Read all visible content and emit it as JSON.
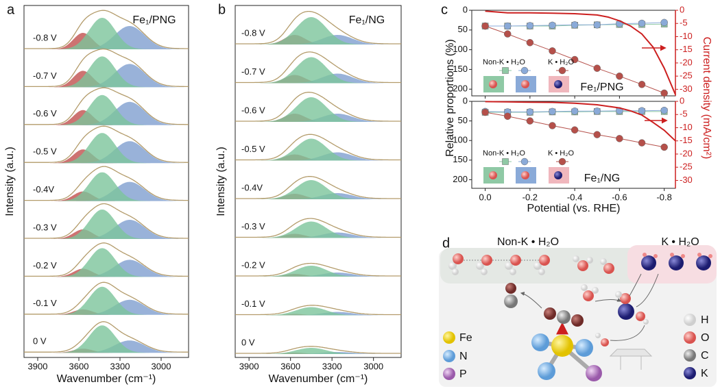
{
  "chart_data": [
    {
      "type": "spectra",
      "panel": "a",
      "annotation": "Fe₁/PNG",
      "xlabel": "Wavenumber (cm⁻¹)",
      "ylabel": "Intensity (a.u.)",
      "xlim": [
        4000,
        2800
      ],
      "xticks": [
        3900,
        3600,
        3300,
        3000
      ],
      "categories": [
        "-0.8 V",
        "-0.7 V",
        "-0.6 V",
        "-0.5 V",
        "-0.4V",
        "-0.3 V",
        "-0.2 V",
        "-0.1 V",
        "0 V"
      ],
      "series": [
        {
          "color": "#c0504d",
          "center": 3570,
          "width": 70,
          "values": [
            24,
            24,
            22,
            20,
            14,
            14,
            12,
            8,
            6
          ]
        },
        {
          "color": "#7f9fd0",
          "center": 3230,
          "width": 110,
          "values": [
            34,
            34,
            34,
            32,
            28,
            28,
            25,
            22,
            18
          ]
        },
        {
          "color": "#7cc49b",
          "center": 3430,
          "width": 95,
          "values": [
            46,
            45,
            44,
            44,
            42,
            43,
            42,
            41,
            40
          ]
        }
      ]
    },
    {
      "type": "spectra",
      "panel": "b",
      "annotation": "Fe₁/NG",
      "xlabel": "Wavenumber (cm⁻¹)",
      "ylabel": "Intensity (a.u.)",
      "xlim": [
        4000,
        2800
      ],
      "xticks": [
        3900,
        3600,
        3300,
        3000
      ],
      "categories": [
        "-0.8 V",
        "-0.7 V",
        "-0.6 V",
        "-0.5 V",
        "-0.4V",
        "-0.3 V",
        "-0.2 V",
        "-0.1 V",
        "0 V"
      ],
      "series": [
        {
          "color": "#c0504d",
          "center": 3570,
          "width": 75,
          "values": [
            14,
            12,
            12,
            9,
            8,
            6,
            4,
            2,
            2
          ]
        },
        {
          "color": "#7f9fd0",
          "center": 3260,
          "width": 110,
          "values": [
            14,
            14,
            12,
            12,
            9,
            8,
            6,
            5,
            3
          ]
        },
        {
          "color": "#7cc49b",
          "center": 3450,
          "width": 110,
          "values": [
            40,
            38,
            36,
            32,
            28,
            24,
            16,
            12,
            9
          ]
        }
      ]
    },
    {
      "type": "dual",
      "panel": "c",
      "annotation": "Fe₁/PNG",
      "x": [
        0,
        -0.1,
        -0.2,
        -0.3,
        -0.4,
        -0.5,
        -0.6,
        -0.7,
        -0.8
      ],
      "xlim": [
        0.06,
        -0.85
      ],
      "xticks": [
        {
          "value": 0,
          "label": "0.0"
        },
        -0.2,
        -0.4,
        -0.6,
        -0.8
      ],
      "ylim": [
        0,
        217
      ],
      "yticks": [
        0,
        50,
        100,
        150,
        200
      ],
      "y2lim": [
        0,
        -32.5
      ],
      "y2ticks": [
        0,
        -5,
        -10,
        -15,
        -20,
        -25,
        -30
      ],
      "series": [
        {
          "name": "Non-K • H₂O",
          "color": "#8fc9a5",
          "marker": "square",
          "values": [
            40,
            40,
            40,
            40,
            38,
            37,
            36,
            36,
            35
          ]
        },
        {
          "color": "#8aaad8",
          "marker": "circle",
          "values": [
            40,
            40,
            39,
            38,
            37,
            37,
            34,
            33,
            31
          ]
        },
        {
          "name": "K • H₂O",
          "color": "#b5504a",
          "marker": "circle",
          "values": [
            40,
            60,
            82,
            103,
            125,
            147,
            167,
            188,
            210
          ]
        },
        {
          "axis": "y2",
          "color": "#cc1f1f",
          "x": [
            0,
            -0.1,
            -0.2,
            -0.3,
            -0.4,
            -0.5,
            -0.55,
            -0.6,
            -0.65,
            -0.7,
            -0.75,
            -0.8,
            -0.85
          ],
          "values": [
            -0.3,
            -1,
            -1,
            -1.1,
            -1.3,
            -1.8,
            -2.6,
            -4,
            -6,
            -9,
            -14,
            -22,
            -32
          ]
        }
      ]
    },
    {
      "type": "dual",
      "annotation": "Fe₁/NG",
      "xlabel": "Potential (vs. RHE)",
      "ylabel": "Relative proportions (%)",
      "y2label": "Current density (mA/cm²)",
      "x": [
        0,
        -0.1,
        -0.2,
        -0.3,
        -0.4,
        -0.5,
        -0.6,
        -0.7,
        -0.8
      ],
      "xlim": [
        0.06,
        -0.85
      ],
      "xticks": [
        {
          "value": 0,
          "label": "0.0"
        },
        -0.2,
        -0.4,
        -0.6,
        -0.8
      ],
      "ylim": [
        0,
        222
      ],
      "yticks": [
        0,
        50,
        100,
        150,
        200
      ],
      "y2lim": [
        0,
        -33
      ],
      "y2ticks": [
        0,
        -5,
        -10,
        -15,
        -20,
        -25,
        -30
      ],
      "series": [
        {
          "name": "Non-K • H₂O",
          "color": "#8fc9a5",
          "marker": "square",
          "values": [
            28,
            28,
            28,
            27,
            27,
            26,
            26,
            26,
            26
          ]
        },
        {
          "color": "#8aaad8",
          "marker": "circle",
          "values": [
            26,
            27,
            27,
            26,
            25,
            25,
            24,
            24,
            23
          ]
        },
        {
          "name": "K • H₂O",
          "color": "#b5504a",
          "marker": "circle",
          "values": [
            28,
            38,
            50,
            62,
            73,
            85,
            95,
            106,
            117
          ]
        },
        {
          "axis": "y2",
          "color": "#cc1f1f",
          "x": [
            0,
            -0.1,
            -0.2,
            -0.3,
            -0.4,
            -0.5,
            -0.6,
            -0.65,
            -0.7,
            -0.75,
            -0.8,
            -0.85
          ],
          "values": [
            -0.1,
            -0.2,
            -0.3,
            -0.4,
            -0.7,
            -1.3,
            -2.5,
            -3.6,
            -5.2,
            -8,
            -11,
            -15
          ]
        }
      ]
    }
  ],
  "diagram": {
    "panel": "d",
    "groups": [
      "Non-K • H₂O",
      "K • H₂O"
    ],
    "legend": [
      "Fe",
      "N",
      "P",
      "H",
      "O",
      "C",
      "K"
    ]
  }
}
